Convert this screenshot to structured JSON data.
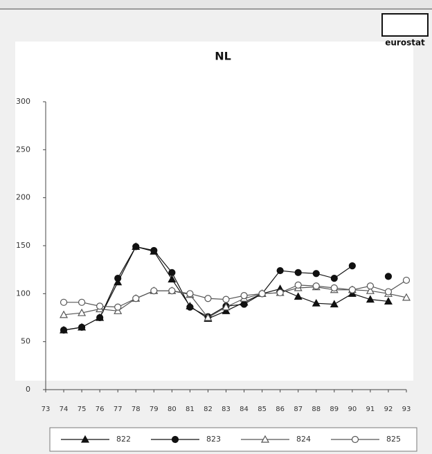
{
  "chart_data": {
    "type": "line",
    "title": "NL",
    "logo": "eurostat",
    "categories": [
      "73",
      "74",
      "75",
      "76",
      "77",
      "78",
      "79",
      "80",
      "81",
      "82",
      "83",
      "84",
      "85",
      "86",
      "87",
      "88",
      "89",
      "90",
      "91",
      "92",
      "93"
    ],
    "series": [
      {
        "name": "822",
        "color": "#111111",
        "marker": "triangle-filled",
        "values": [
          null,
          62,
          65,
          75,
          112,
          149,
          144,
          115,
          87,
          74,
          82,
          91,
          100,
          105,
          97,
          90,
          89,
          100,
          94,
          92,
          null
        ]
      },
      {
        "name": "823",
        "color": "#111111",
        "marker": "circle-filled",
        "values": [
          null,
          62,
          65,
          75,
          116,
          149,
          145,
          122,
          86,
          76,
          87,
          89,
          100,
          124,
          122,
          121,
          116,
          129,
          null,
          118,
          null
        ]
      },
      {
        "name": "824",
        "color": "#555555",
        "marker": "triangle-open",
        "values": [
          null,
          78,
          80,
          84,
          82,
          95,
          103,
          103,
          99,
          75,
          86,
          95,
          100,
          101,
          106,
          107,
          104,
          104,
          103,
          100,
          96
        ]
      },
      {
        "name": "825",
        "color": "#555555",
        "marker": "circle-open",
        "values": [
          null,
          91,
          91,
          87,
          86,
          95,
          103,
          103,
          100,
          95,
          94,
          98,
          100,
          101,
          109,
          108,
          106,
          104,
          108,
          102,
          114
        ]
      }
    ],
    "ylim": [
      0,
      300
    ],
    "yticks": [
      0,
      50,
      100,
      150,
      200,
      250,
      300
    ]
  }
}
